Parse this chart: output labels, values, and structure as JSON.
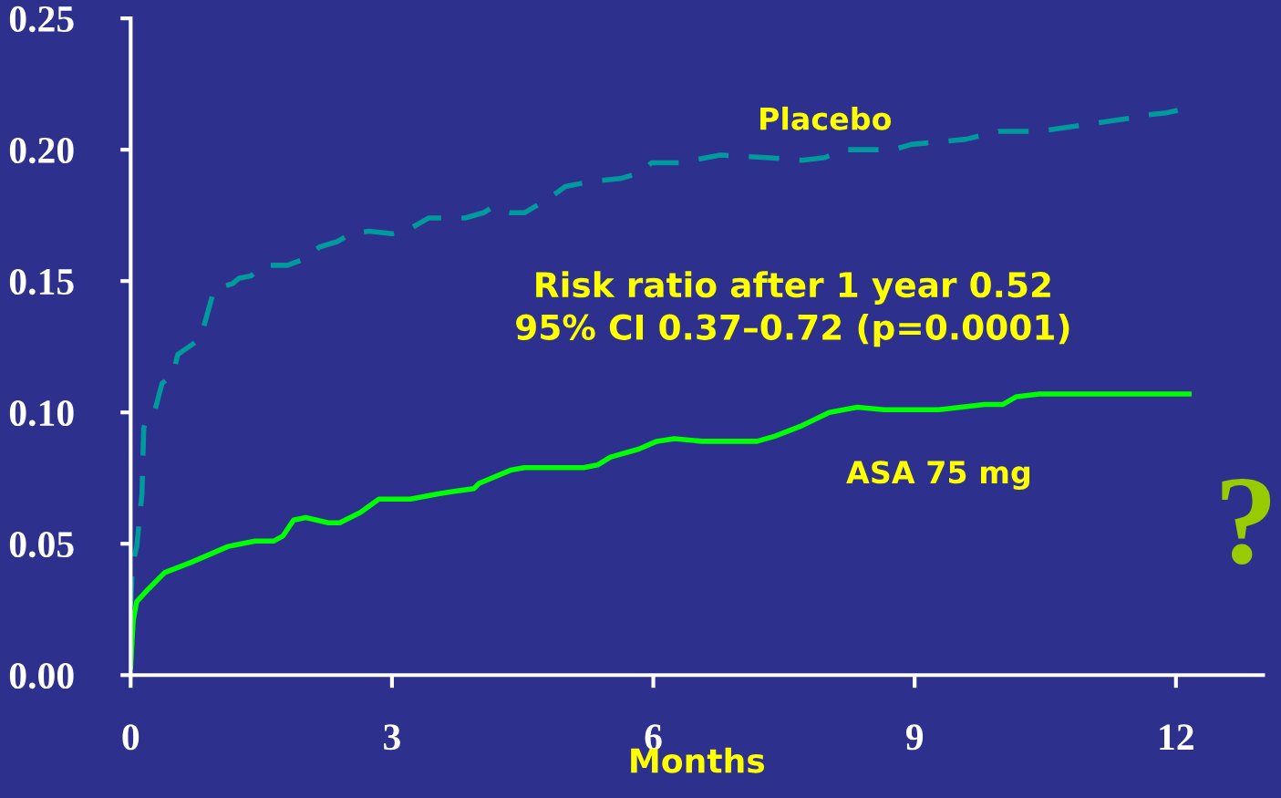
{
  "chart_data": {
    "type": "line",
    "xlabel": "Months",
    "xlim": [
      0,
      13
    ],
    "xticks": [
      0,
      3,
      6,
      9,
      12
    ],
    "ylim": [
      0,
      0.25
    ],
    "yticks": [
      {
        "value": 0,
        "label": "0.00"
      },
      {
        "value": 0.05,
        "label": "0.05"
      },
      {
        "value": 0.1,
        "label": "0.10"
      },
      {
        "value": 0.15,
        "label": "0.15"
      },
      {
        "value": 0.2,
        "label": "0.20"
      },
      {
        "value": 0.25,
        "label": "0.25"
      }
    ],
    "grid": false,
    "legend": false,
    "marker": "none",
    "series": [
      {
        "name": "Placebo",
        "color": "#00999c",
        "line_style": "dashed",
        "x": [
          0,
          0.02,
          0.07,
          0.13,
          0.15,
          0.18,
          0.28,
          0.36,
          0.49,
          0.54,
          0.8,
          0.96,
          1.17,
          1.24,
          1.38,
          1.54,
          1.64,
          1.8,
          1.96,
          2.17,
          2.37,
          2.53,
          2.74,
          3.0,
          3.21,
          3.42,
          3.63,
          3.84,
          4.05,
          4.15,
          4.36,
          4.52,
          4.78,
          4.99,
          5.3,
          5.62,
          5.83,
          5.98,
          6.3,
          6.77,
          7.29,
          7.71,
          7.97,
          8.18,
          8.76,
          8.96,
          9.59,
          9.96,
          10.43,
          11.06,
          11.48,
          11.58,
          11.89,
          12.02
        ],
        "values": [
          0.026,
          0.042,
          0.049,
          0.069,
          0.094,
          0.097,
          0.101,
          0.111,
          0.115,
          0.122,
          0.128,
          0.147,
          0.149,
          0.151,
          0.152,
          0.156,
          0.156,
          0.156,
          0.158,
          0.163,
          0.165,
          0.168,
          0.169,
          0.168,
          0.17,
          0.174,
          0.174,
          0.174,
          0.176,
          0.178,
          0.176,
          0.176,
          0.181,
          0.186,
          0.188,
          0.189,
          0.191,
          0.195,
          0.195,
          0.198,
          0.197,
          0.196,
          0.197,
          0.2,
          0.2,
          0.202,
          0.204,
          0.207,
          0.207,
          0.21,
          0.212,
          0.213,
          0.214,
          0.215
        ]
      },
      {
        "name": "ASA 75 mg",
        "color": "#00ff00",
        "line_style": "solid",
        "x": [
          0,
          0.03,
          0.07,
          0.21,
          0.39,
          0.7,
          1.12,
          1.43,
          1.64,
          1.75,
          1.87,
          2.01,
          2.27,
          2.4,
          2.64,
          2.85,
          3.0,
          3.21,
          3.53,
          3.73,
          3.94,
          4.0,
          4.36,
          4.52,
          4.78,
          5.2,
          5.36,
          5.51,
          5.83,
          6.04,
          6.24,
          6.56,
          6.87,
          7.19,
          7.4,
          7.71,
          8.02,
          8.34,
          8.65,
          9.28,
          9.8,
          10.01,
          10.17,
          10.43,
          12.15
        ],
        "values": [
          0.003,
          0.021,
          0.028,
          0.033,
          0.039,
          0.043,
          0.049,
          0.051,
          0.051,
          0.053,
          0.059,
          0.06,
          0.058,
          0.058,
          0.062,
          0.067,
          0.067,
          0.067,
          0.069,
          0.07,
          0.071,
          0.073,
          0.078,
          0.079,
          0.079,
          0.079,
          0.08,
          0.083,
          0.086,
          0.089,
          0.09,
          0.089,
          0.089,
          0.089,
          0.091,
          0.095,
          0.1,
          0.102,
          0.101,
          0.101,
          0.103,
          0.103,
          0.106,
          0.107,
          0.107
        ]
      }
    ],
    "annotations": [
      "Risk ratio after 1 year 0.52\n95% CI 0.37–0.72 (p=0.0001)",
      "?"
    ]
  }
}
